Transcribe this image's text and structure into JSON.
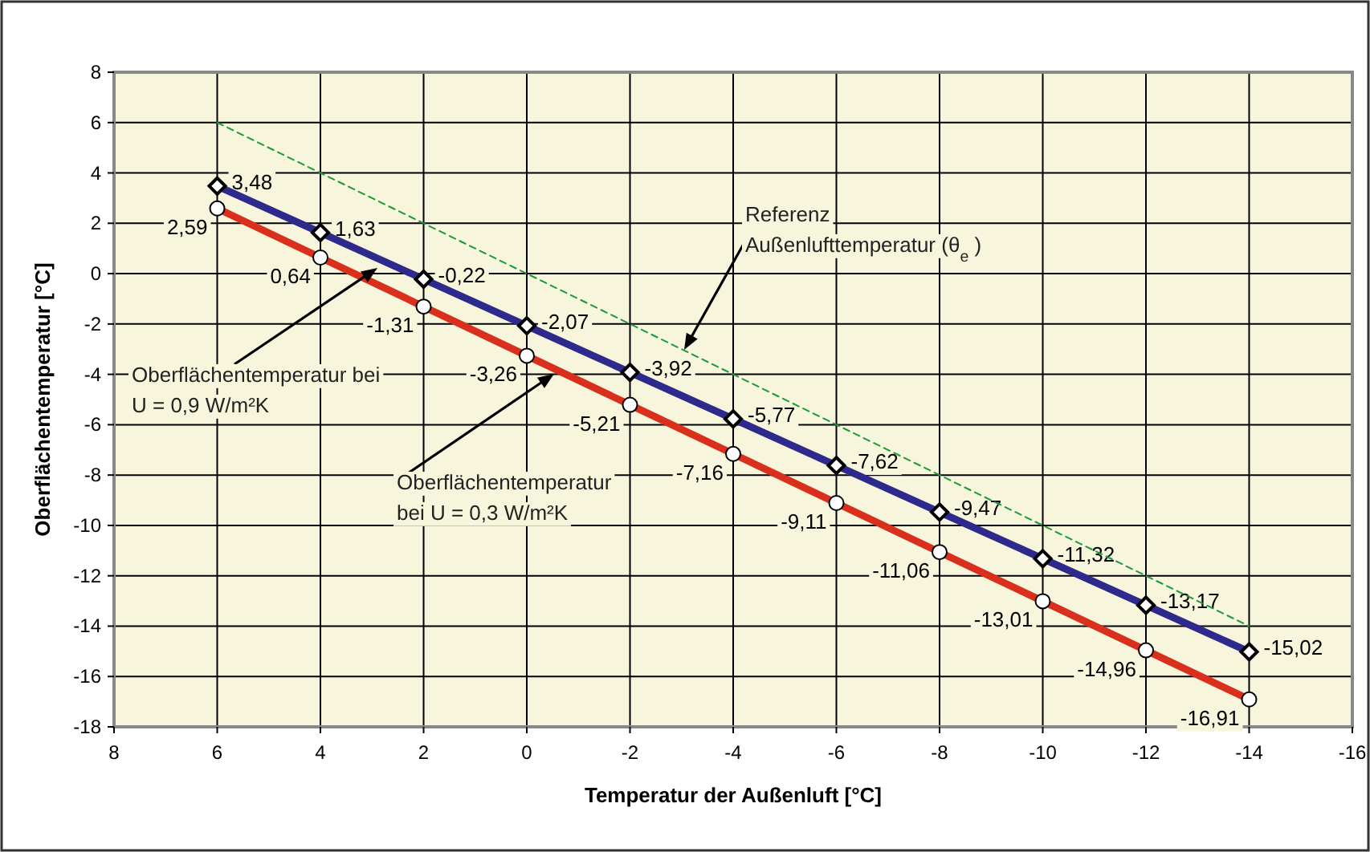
{
  "chart_data": {
    "type": "line",
    "xlabel": "Temperatur der Außenluft [°C]",
    "ylabel": "Oberflächentemperatur [°C]",
    "x": [
      6,
      4,
      2,
      0,
      -2,
      -4,
      -6,
      -8,
      -10,
      -12,
      -14
    ],
    "xlim": [
      8,
      -16
    ],
    "xticks": [
      8,
      6,
      4,
      2,
      0,
      -2,
      -4,
      -6,
      -8,
      -10,
      -12,
      -14,
      -16
    ],
    "ylim": [
      -18,
      8
    ],
    "yticks": [
      -18,
      -16,
      -14,
      -12,
      -10,
      -8,
      -6,
      -4,
      -2,
      0,
      2,
      4,
      6,
      8
    ],
    "grid": true,
    "series": [
      {
        "color": "#2e2a8c",
        "marker": "diamond",
        "line_style": "solid",
        "values": [
          3.48,
          1.63,
          -0.22,
          -2.07,
          -3.92,
          -5.77,
          -7.62,
          -9.47,
          -11.32,
          -13.17,
          -15.02
        ],
        "value_labels": [
          "3,48",
          "1,63",
          "-0,22",
          "-2,07",
          "-3,92",
          "-5,77",
          "-7,62",
          "-9,47",
          "-11,32",
          "-13,17",
          "-15,02"
        ]
      },
      {
        "color": "#d9301e",
        "marker": "circle",
        "line_style": "solid",
        "values": [
          2.59,
          0.64,
          -1.31,
          -3.26,
          -5.21,
          -7.16,
          -9.11,
          -11.06,
          -13.01,
          -14.96,
          -16.91
        ],
        "value_labels": [
          "2,59",
          "0,64",
          "-1,31",
          "-3,26",
          "-5,21",
          "-7,16",
          "-9,11",
          "-11,06",
          "-13,01",
          "-14,96",
          "-16,91"
        ]
      },
      {
        "color": "#1a9a3a",
        "marker": "none",
        "line_style": "dashed",
        "x": [
          6,
          -14
        ],
        "values": [
          6,
          -14
        ]
      }
    ],
    "annotations": [
      "Oberflächentemperatur bei\nU = 0,9 W/m²K",
      "Oberflächentemperatur\nbei U = 0,3 W/m²K",
      "Referenz\nAußenlufttemperatur (θ$_{e}$)"
    ]
  }
}
